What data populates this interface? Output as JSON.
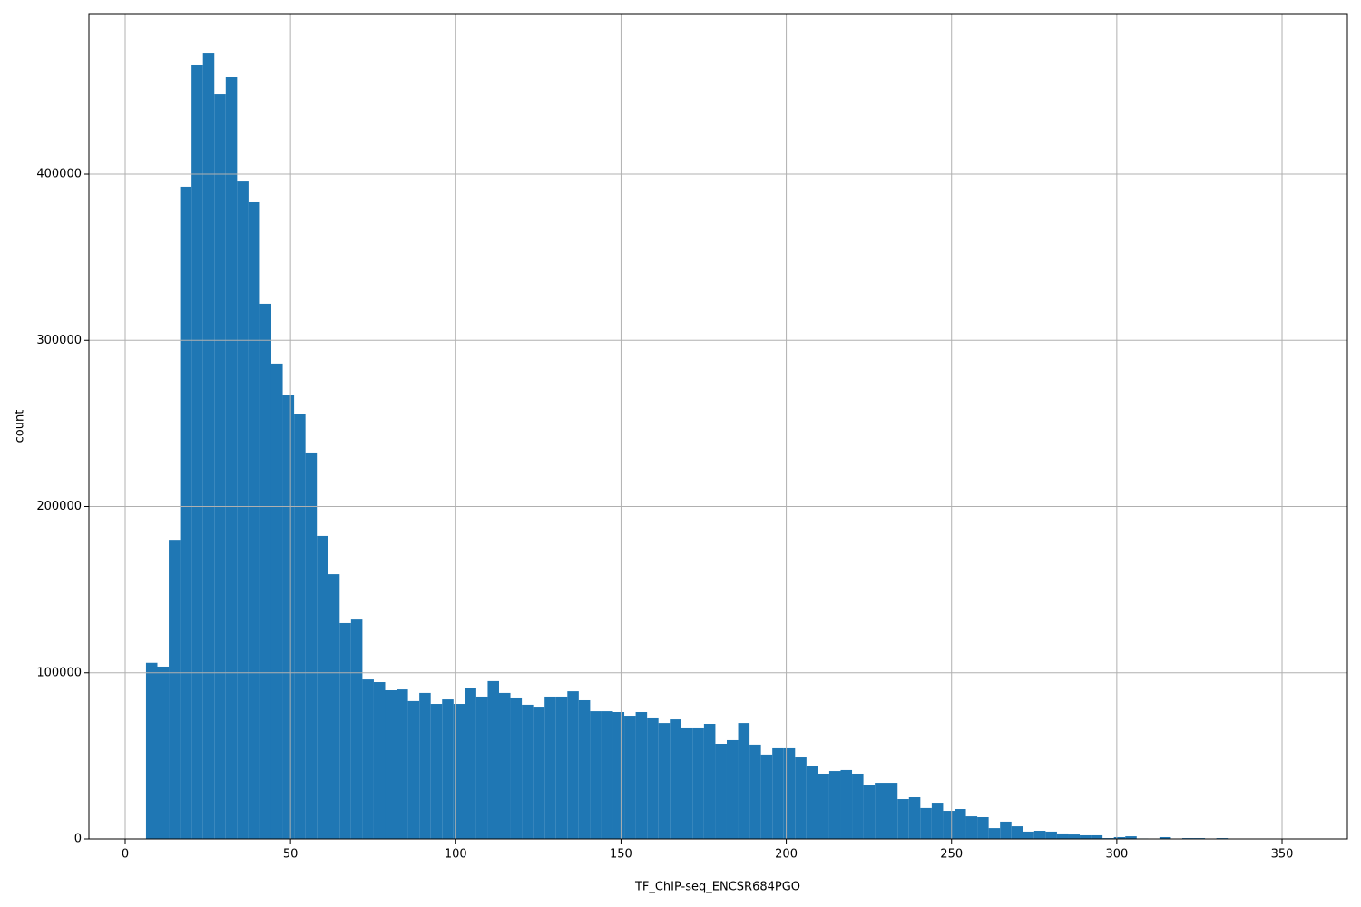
{
  "chart_data": {
    "type": "histogram",
    "x_label": "TF_ChIP-seq_ENCSR684PGO",
    "y_label": "count",
    "color": "#1f77b4",
    "grid": true,
    "bins": [
      6.3,
      9.745,
      13.19,
      16.635,
      20.08,
      23.525,
      26.97,
      30.415,
      33.86,
      37.305,
      40.75,
      44.195,
      47.64,
      51.085,
      54.53,
      57.975,
      61.42,
      64.865,
      68.31,
      71.755,
      75.2,
      78.645,
      82.09,
      85.535,
      88.98,
      92.425,
      95.87,
      99.315,
      102.76,
      106.205,
      109.65,
      113.095,
      116.54,
      119.985,
      123.43,
      126.875,
      130.32,
      133.765,
      137.21,
      140.655,
      144.1,
      147.545,
      150.99,
      154.435,
      157.88,
      161.325,
      164.77,
      168.215,
      171.66,
      175.105,
      178.55,
      181.995,
      185.44,
      188.885,
      192.33,
      195.775,
      199.22,
      202.665,
      206.11,
      209.555,
      213,
      216.445,
      219.89,
      223.335,
      226.78,
      230.225,
      233.67,
      237.115,
      240.56,
      244.005,
      247.45,
      250.895,
      254.34,
      257.785,
      261.23,
      264.675,
      268.12,
      271.565,
      275.01,
      278.455,
      281.9,
      285.345,
      288.79,
      292.235,
      295.68,
      299.125,
      302.57,
      306.015,
      309.46,
      312.905,
      316.35,
      319.795,
      323.24,
      326.685,
      330.13,
      333.575,
      337.02,
      340.465,
      343.91,
      347.355,
      350.8
    ],
    "values": [
      106000,
      103700,
      180000,
      392400,
      465500,
      473100,
      448000,
      458400,
      395600,
      383100,
      322000,
      286000,
      267400,
      255400,
      232500,
      182300,
      159300,
      129900,
      132000,
      96000,
      94400,
      89500,
      90000,
      83000,
      87900,
      81300,
      84000,
      81300,
      90600,
      85700,
      95000,
      87900,
      84600,
      80800,
      79100,
      85700,
      85700,
      88900,
      83500,
      76900,
      76900,
      76400,
      74200,
      76400,
      72600,
      69800,
      72000,
      66600,
      66600,
      69300,
      57300,
      59500,
      69800,
      56800,
      50800,
      54600,
      54600,
      49100,
      43700,
      39300,
      40900,
      41500,
      39300,
      32700,
      33800,
      33800,
      24000,
      25100,
      18600,
      21800,
      16900,
      18000,
      13600,
      13100,
      6500,
      10400,
      7600,
      4400,
      4900,
      4400,
      3300,
      2700,
      2200,
      2200,
      500,
      1100,
      1600,
      300,
      0,
      1100,
      0,
      500,
      500,
      200,
      500,
      0,
      0,
      0,
      0,
      0
    ],
    "xlim": [
      -10.98,
      369.76
    ],
    "ylim": [
      0,
      496600
    ],
    "xticks": [
      0,
      50,
      100,
      150,
      200,
      250,
      300,
      350
    ],
    "yticks": [
      0,
      100000,
      200000,
      300000,
      400000
    ]
  }
}
